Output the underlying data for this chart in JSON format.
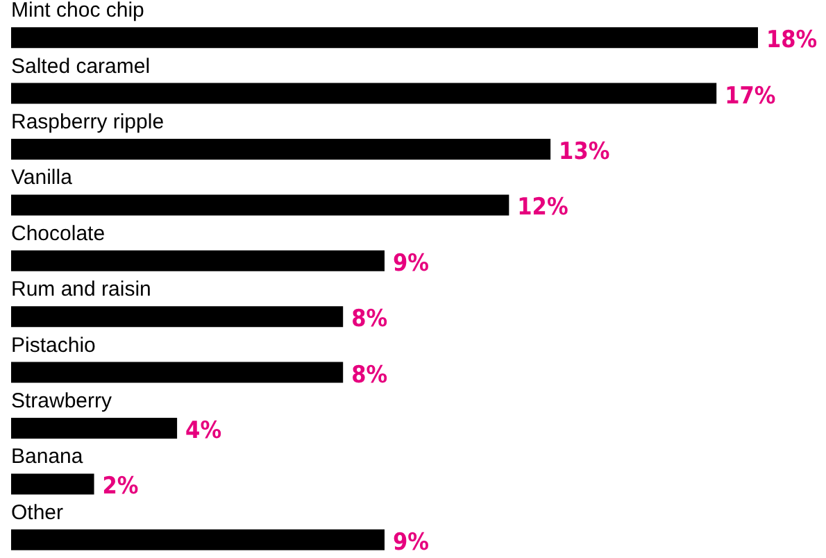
{
  "chart_data": {
    "type": "bar",
    "orientation": "horizontal",
    "categories": [
      "Mint choc chip",
      "Salted caramel",
      "Raspberry ripple",
      "Vanilla",
      "Chocolate",
      "Rum and raisin",
      "Pistachio",
      "Strawberry",
      "Banana",
      "Other"
    ],
    "values": [
      18,
      17,
      13,
      12,
      9,
      8,
      8,
      4,
      2,
      9
    ],
    "value_labels": [
      "18%",
      "17%",
      "13%",
      "12%",
      "9%",
      "8%",
      "8%",
      "4%",
      "2%",
      "9%"
    ],
    "color": "#000000"
  }
}
